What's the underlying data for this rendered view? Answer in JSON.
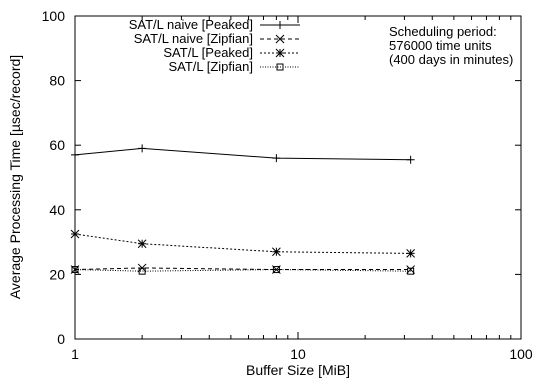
{
  "chart_data": {
    "type": "line",
    "xlabel": "Buffer Size [MiB]",
    "ylabel": "Average Processing Time [µsec/record]",
    "x_scale": "log",
    "xlim": [
      1,
      100
    ],
    "ylim": [
      0,
      100
    ],
    "x_ticks": [
      1,
      10,
      100
    ],
    "y_ticks": [
      0,
      20,
      40,
      60,
      80,
      100
    ],
    "grid": false,
    "legend_position": "top-center",
    "annotation": [
      "Scheduling period:",
      "576000 time units",
      "(400 days in minutes)"
    ],
    "series": [
      {
        "name": "SAT/L naive [Peaked]",
        "marker": "plus",
        "dash": "solid",
        "x": [
          1,
          2,
          8,
          32
        ],
        "values": [
          57,
          59,
          56,
          55.5
        ]
      },
      {
        "name": "SAT/L naive [Zipfian]",
        "marker": "cross",
        "dash": "dashed",
        "x": [
          1,
          2,
          8,
          32
        ],
        "values": [
          21.5,
          22,
          21.5,
          21.5
        ]
      },
      {
        "name": "SAT/L [Peaked]",
        "marker": "star",
        "dash": "dotted",
        "x": [
          1,
          2,
          8,
          32
        ],
        "values": [
          32.5,
          29.5,
          27,
          26.5
        ]
      },
      {
        "name": "SAT/L [Zipfian]",
        "marker": "square",
        "dash": "fine-dotted",
        "x": [
          1,
          2,
          8,
          32
        ],
        "values": [
          21.5,
          21,
          21.5,
          21
        ]
      }
    ]
  }
}
